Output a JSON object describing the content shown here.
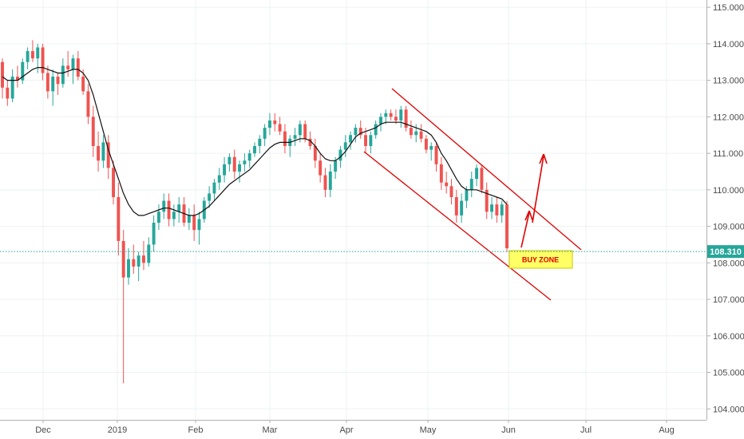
{
  "chart_data": {
    "type": "candlestick",
    "y_axis_ticks": [
      "115.000",
      "114.000",
      "113.000",
      "112.000",
      "111.000",
      "110.000",
      "109.000",
      "108.000",
      "107.000",
      "106.000",
      "105.000",
      "104.000"
    ],
    "ylim": [
      103.7,
      115.2
    ],
    "x_axis_labels": [
      "Dec",
      "2019",
      "Feb",
      "Mar",
      "Apr",
      "May",
      "Jun",
      "Jul",
      "Aug"
    ],
    "current_price": "108.310",
    "annotation": "BUY ZONE",
    "colors": {
      "up": "#26a69a",
      "down": "#ef5350",
      "channel": "#e00000",
      "ma": "#111111",
      "price_line": "#26a69a",
      "zone_fill": "#ffff66"
    },
    "candles": [
      [
        113.5,
        113.6,
        112.5,
        112.8
      ],
      [
        112.8,
        113.0,
        112.3,
        112.5
      ],
      [
        112.5,
        113.3,
        112.4,
        113.1
      ],
      [
        113.1,
        113.4,
        112.8,
        113.0
      ],
      [
        113.0,
        113.6,
        112.9,
        113.5
      ],
      [
        113.5,
        113.9,
        113.3,
        113.8
      ],
      [
        113.8,
        114.1,
        113.5,
        113.6
      ],
      [
        113.6,
        114.0,
        113.2,
        113.9
      ],
      [
        113.9,
        114.0,
        113.0,
        113.2
      ],
      [
        113.2,
        113.4,
        112.5,
        112.7
      ],
      [
        112.7,
        113.3,
        112.3,
        113.1
      ],
      [
        113.1,
        113.2,
        112.6,
        112.9
      ],
      [
        112.9,
        113.6,
        112.8,
        113.4
      ],
      [
        113.4,
        113.8,
        113.1,
        113.3
      ],
      [
        113.3,
        113.7,
        112.9,
        113.6
      ],
      [
        113.6,
        113.8,
        113.0,
        113.1
      ],
      [
        113.1,
        113.3,
        112.6,
        112.7
      ],
      [
        112.7,
        112.9,
        111.8,
        112.0
      ],
      [
        112.0,
        112.3,
        110.9,
        111.2
      ],
      [
        111.2,
        111.6,
        110.5,
        110.8
      ],
      [
        110.8,
        111.5,
        110.6,
        111.3
      ],
      [
        111.3,
        111.5,
        110.3,
        110.6
      ],
      [
        110.6,
        110.8,
        109.6,
        109.8
      ],
      [
        109.8,
        110.2,
        108.2,
        108.6
      ],
      [
        108.6,
        108.9,
        104.7,
        107.6
      ],
      [
        107.6,
        108.4,
        107.4,
        108.1
      ],
      [
        108.1,
        108.5,
        107.7,
        107.9
      ],
      [
        107.9,
        108.3,
        107.5,
        108.2
      ],
      [
        108.2,
        108.6,
        107.8,
        108.0
      ],
      [
        108.0,
        108.7,
        107.9,
        108.5
      ],
      [
        108.5,
        109.3,
        108.3,
        109.1
      ],
      [
        109.1,
        109.6,
        108.9,
        109.4
      ],
      [
        109.4,
        109.9,
        109.2,
        109.7
      ],
      [
        109.7,
        109.9,
        109.0,
        109.2
      ],
      [
        109.2,
        109.6,
        109.0,
        109.4
      ],
      [
        109.4,
        109.8,
        109.1,
        109.6
      ],
      [
        109.6,
        109.8,
        109.0,
        109.1
      ],
      [
        109.1,
        109.5,
        108.9,
        109.3
      ],
      [
        109.3,
        109.6,
        108.6,
        108.9
      ],
      [
        108.9,
        109.4,
        108.5,
        109.2
      ],
      [
        109.2,
        109.8,
        109.1,
        109.7
      ],
      [
        109.7,
        110.1,
        109.5,
        109.9
      ],
      [
        109.9,
        110.3,
        109.7,
        110.2
      ],
      [
        110.2,
        110.6,
        110.0,
        110.4
      ],
      [
        110.4,
        110.9,
        110.2,
        110.7
      ],
      [
        110.7,
        111.0,
        110.5,
        110.9
      ],
      [
        110.9,
        111.1,
        110.3,
        110.5
      ],
      [
        110.5,
        110.8,
        110.2,
        110.7
      ],
      [
        110.7,
        111.0,
        110.5,
        110.8
      ],
      [
        110.8,
        111.1,
        110.6,
        111.0
      ],
      [
        111.0,
        111.3,
        110.9,
        111.2
      ],
      [
        111.2,
        111.5,
        111.0,
        111.4
      ],
      [
        111.4,
        111.8,
        111.2,
        111.7
      ],
      [
        111.7,
        112.1,
        111.5,
        111.9
      ],
      [
        111.9,
        112.1,
        111.6,
        111.8
      ],
      [
        111.8,
        112.0,
        111.5,
        111.6
      ],
      [
        111.6,
        111.8,
        111.0,
        111.2
      ],
      [
        111.2,
        111.5,
        110.9,
        111.4
      ],
      [
        111.4,
        111.7,
        111.2,
        111.5
      ],
      [
        111.5,
        111.9,
        111.3,
        111.8
      ],
      [
        111.8,
        111.9,
        111.3,
        111.4
      ],
      [
        111.4,
        111.6,
        111.1,
        111.2
      ],
      [
        111.2,
        111.4,
        110.6,
        110.8
      ],
      [
        110.8,
        111.0,
        110.2,
        110.4
      ],
      [
        110.4,
        110.6,
        109.8,
        110.0
      ],
      [
        110.0,
        110.7,
        109.8,
        110.5
      ],
      [
        110.5,
        110.9,
        110.3,
        110.8
      ],
      [
        110.8,
        111.2,
        110.6,
        111.1
      ],
      [
        111.1,
        111.5,
        110.9,
        111.3
      ],
      [
        111.3,
        111.6,
        111.1,
        111.5
      ],
      [
        111.5,
        111.8,
        111.3,
        111.7
      ],
      [
        111.7,
        111.9,
        111.4,
        111.5
      ],
      [
        111.5,
        111.7,
        111.0,
        111.2
      ],
      [
        111.2,
        111.6,
        111.0,
        111.5
      ],
      [
        111.5,
        111.9,
        111.4,
        111.8
      ],
      [
        111.8,
        112.1,
        111.6,
        112.0
      ],
      [
        112.0,
        112.2,
        111.8,
        112.1
      ],
      [
        112.1,
        112.2,
        111.9,
        112.0
      ],
      [
        112.0,
        112.2,
        111.8,
        111.9
      ],
      [
        111.9,
        112.3,
        111.7,
        112.2
      ],
      [
        112.2,
        112.3,
        111.6,
        111.7
      ],
      [
        111.7,
        111.9,
        111.4,
        111.5
      ],
      [
        111.5,
        111.8,
        111.3,
        111.6
      ],
      [
        111.6,
        111.8,
        111.3,
        111.4
      ],
      [
        111.4,
        111.5,
        111.0,
        111.1
      ],
      [
        111.1,
        111.3,
        110.8,
        111.2
      ],
      [
        111.2,
        111.3,
        110.5,
        110.7
      ],
      [
        110.7,
        110.9,
        110.0,
        110.2
      ],
      [
        110.2,
        110.5,
        109.9,
        110.1
      ],
      [
        110.1,
        110.3,
        109.6,
        109.8
      ],
      [
        109.8,
        110.0,
        109.1,
        109.3
      ],
      [
        109.3,
        109.9,
        109.1,
        109.7
      ],
      [
        109.7,
        110.1,
        109.5,
        110.0
      ],
      [
        110.0,
        110.5,
        109.8,
        110.3
      ],
      [
        110.3,
        110.7,
        110.1,
        110.6
      ],
      [
        110.6,
        110.7,
        109.9,
        110.0
      ],
      [
        110.0,
        110.2,
        109.2,
        109.4
      ],
      [
        109.4,
        109.8,
        109.2,
        109.6
      ],
      [
        109.6,
        109.8,
        109.1,
        109.3
      ],
      [
        109.3,
        109.7,
        109.1,
        109.6
      ],
      [
        109.6,
        109.7,
        108.3,
        108.4
      ]
    ],
    "ma": [
      113.1,
      113.0,
      113.0,
      113.0,
      113.1,
      113.2,
      113.3,
      113.35,
      113.35,
      113.3,
      113.25,
      113.2,
      113.2,
      113.25,
      113.3,
      113.3,
      113.2,
      113.0,
      112.6,
      112.1,
      111.6,
      111.1,
      110.7,
      110.3,
      109.9,
      109.6,
      109.4,
      109.3,
      109.3,
      109.35,
      109.4,
      109.45,
      109.5,
      109.5,
      109.45,
      109.4,
      109.35,
      109.3,
      109.3,
      109.35,
      109.45,
      109.55,
      109.7,
      109.85,
      110.0,
      110.15,
      110.25,
      110.35,
      110.45,
      110.55,
      110.7,
      110.85,
      111.0,
      111.15,
      111.25,
      111.3,
      111.3,
      111.3,
      111.35,
      111.4,
      111.4,
      111.35,
      111.2,
      111.0,
      110.85,
      110.8,
      110.8,
      110.9,
      111.05,
      111.25,
      111.45,
      111.55,
      111.6,
      111.65,
      111.7,
      111.8,
      111.85,
      111.85,
      111.85,
      111.85,
      111.8,
      111.75,
      111.7,
      111.65,
      111.6,
      111.5,
      111.3,
      111.0,
      110.8,
      110.55,
      110.3,
      110.1,
      110.0,
      110.0,
      110.0,
      109.95,
      109.9,
      109.85,
      109.8,
      109.75,
      109.6
    ]
  }
}
